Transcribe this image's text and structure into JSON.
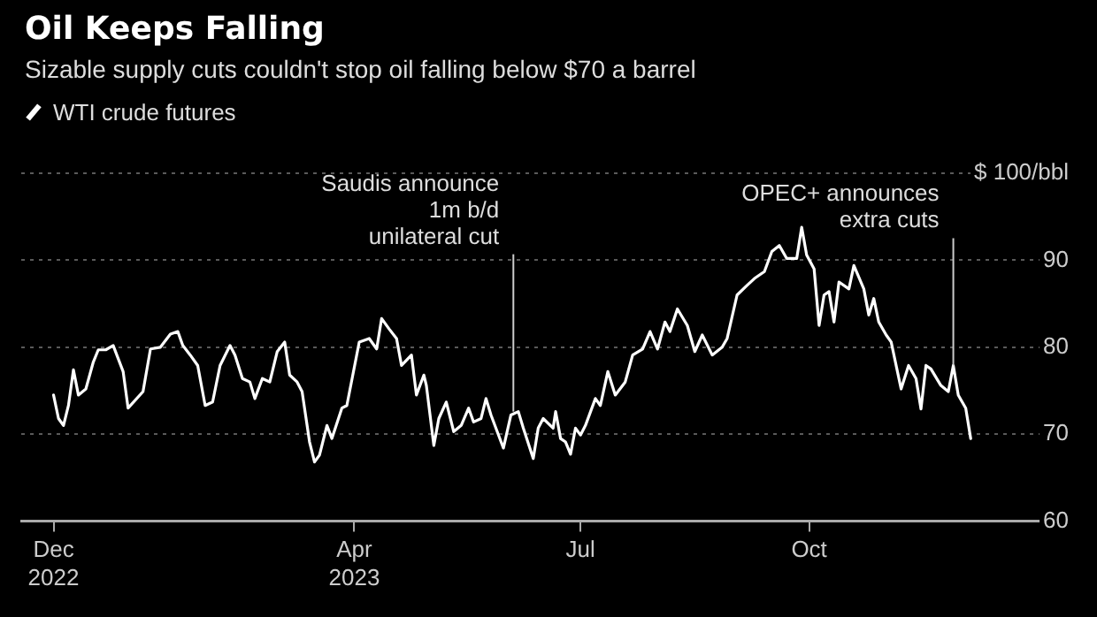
{
  "chart_data": {
    "type": "line",
    "title": "Oil Keeps Falling",
    "subtitle": "Sizable supply cuts couldn't stop oil falling below $70 a barrel",
    "series": [
      {
        "name": "WTI crude futures",
        "color": "#ffffff",
        "x": [
          "2022-12-01",
          "2022-12-03",
          "2022-12-05",
          "2022-12-07",
          "2022-12-09",
          "2022-12-11",
          "2022-12-14",
          "2022-12-17",
          "2022-12-19",
          "2022-12-22",
          "2022-12-25",
          "2022-12-27",
          "2022-12-29",
          "2022-12-31",
          "2023-01-06",
          "2023-01-09",
          "2023-01-13",
          "2023-01-17",
          "2023-01-20",
          "2023-01-22",
          "2023-01-25",
          "2023-01-28",
          "2023-01-31",
          "2023-02-03",
          "2023-02-06",
          "2023-02-10",
          "2023-02-12",
          "2023-02-15",
          "2023-02-18",
          "2023-02-20",
          "2023-02-23",
          "2023-02-26",
          "2023-03-01",
          "2023-03-04",
          "2023-03-06",
          "2023-03-09",
          "2023-03-11",
          "2023-03-14",
          "2023-03-16",
          "2023-03-18",
          "2023-03-21",
          "2023-03-23",
          "2023-03-27",
          "2023-03-29",
          "2023-04-03",
          "2023-04-07",
          "2023-04-10",
          "2023-04-12",
          "2023-04-15",
          "2023-04-18",
          "2023-04-20",
          "2023-04-24",
          "2023-04-26",
          "2023-04-29",
          "2023-04-30",
          "2023-05-03",
          "2023-05-05",
          "2023-05-08",
          "2023-05-11",
          "2023-05-14",
          "2023-05-17",
          "2023-05-19",
          "2023-05-22",
          "2023-05-24",
          "2023-05-26",
          "2023-05-31",
          "2023-06-03",
          "2023-06-06",
          "2023-06-08",
          "2023-06-12",
          "2023-06-14",
          "2023-06-16",
          "2023-06-20",
          "2023-06-21",
          "2023-06-23",
          "2023-06-25",
          "2023-06-27",
          "2023-06-29",
          "2023-07-01",
          "2023-07-03",
          "2023-07-07",
          "2023-07-09",
          "2023-07-12",
          "2023-07-15",
          "2023-07-19",
          "2023-07-22",
          "2023-07-26",
          "2023-07-29",
          "2023-08-01",
          "2023-08-04",
          "2023-08-06",
          "2023-08-09",
          "2023-08-13",
          "2023-08-16",
          "2023-08-19",
          "2023-08-23",
          "2023-08-27",
          "2023-08-29",
          "2023-09-02",
          "2023-09-06",
          "2023-09-09",
          "2023-09-13",
          "2023-09-16",
          "2023-09-19",
          "2023-09-22",
          "2023-09-26",
          "2023-09-28",
          "2023-09-30",
          "2023-10-03",
          "2023-10-05",
          "2023-10-07",
          "2023-10-09",
          "2023-10-11",
          "2023-10-13",
          "2023-10-17",
          "2023-10-19",
          "2023-10-23",
          "2023-10-25",
          "2023-10-27",
          "2023-10-29",
          "2023-11-01",
          "2023-11-03",
          "2023-11-07",
          "2023-11-10",
          "2023-11-13",
          "2023-11-15",
          "2023-11-17",
          "2023-11-19",
          "2023-11-23",
          "2023-11-26",
          "2023-11-28",
          "2023-11-30",
          "2023-12-03",
          "2023-12-05"
        ],
        "values": [
          74.5,
          71.8,
          71.0,
          73.3,
          77.4,
          74.5,
          75.2,
          78.3,
          79.7,
          79.7,
          80.2,
          78.7,
          77.2,
          73.0,
          74.9,
          79.8,
          80.0,
          81.5,
          81.8,
          80.2,
          79.1,
          77.9,
          73.3,
          73.7,
          77.9,
          80.2,
          79.1,
          76.4,
          76.0,
          74.1,
          76.4,
          76.0,
          79.5,
          80.6,
          76.8,
          76.0,
          74.9,
          69.1,
          66.8,
          67.6,
          71.0,
          69.5,
          73.0,
          73.3,
          80.6,
          81.0,
          79.8,
          83.3,
          82.1,
          81.0,
          77.9,
          79.1,
          74.5,
          76.8,
          75.6,
          68.7,
          71.8,
          73.7,
          70.3,
          71.0,
          73.0,
          71.4,
          71.8,
          74.1,
          72.2,
          68.4,
          72.2,
          72.6,
          70.7,
          67.2,
          70.7,
          71.8,
          70.7,
          72.6,
          69.5,
          69.1,
          67.7,
          70.7,
          69.9,
          71.0,
          74.1,
          73.3,
          77.2,
          74.5,
          76.0,
          79.1,
          79.8,
          81.8,
          79.8,
          82.9,
          81.8,
          84.4,
          82.5,
          79.5,
          81.4,
          79.1,
          80.0,
          81.0,
          86.0,
          87.1,
          87.9,
          88.7,
          91.0,
          91.7,
          90.2,
          90.2,
          93.8,
          90.6,
          89.0,
          82.5,
          86.0,
          86.4,
          82.9,
          87.5,
          86.7,
          89.4,
          86.7,
          83.7,
          85.6,
          82.9,
          81.4,
          80.6,
          75.2,
          77.9,
          76.4,
          72.9,
          77.9,
          77.5,
          75.6,
          74.9,
          77.9,
          74.5,
          73.0,
          69.5
        ]
      }
    ],
    "xlim": [
      "2022-11-18",
      "2024-01-12"
    ],
    "xticks": [
      {
        "value": "2022-12-01",
        "label": "Dec\n2022"
      },
      {
        "value": "2023-04-01",
        "label": "Apr\n2023"
      },
      {
        "value": "2023-07-01",
        "label": "Jul"
      },
      {
        "value": "2023-10-01",
        "label": "Oct"
      }
    ],
    "ylim": [
      60,
      100
    ],
    "yticks": [
      60,
      70,
      80,
      90,
      {
        "value": 100,
        "label": "$ 100/bbl"
      }
    ],
    "grid": "y",
    "legend": "top left",
    "marker": "none",
    "line_style": "solid",
    "annotations": [
      {
        "text": "Saudis announce\n1m b/d\nunilateral cut",
        "x": "2023-06-04",
        "y": 72.6
      },
      {
        "text": "OPEC+ announces\nextra cuts",
        "x": "2023-11-28",
        "y": 77.9
      }
    ]
  }
}
